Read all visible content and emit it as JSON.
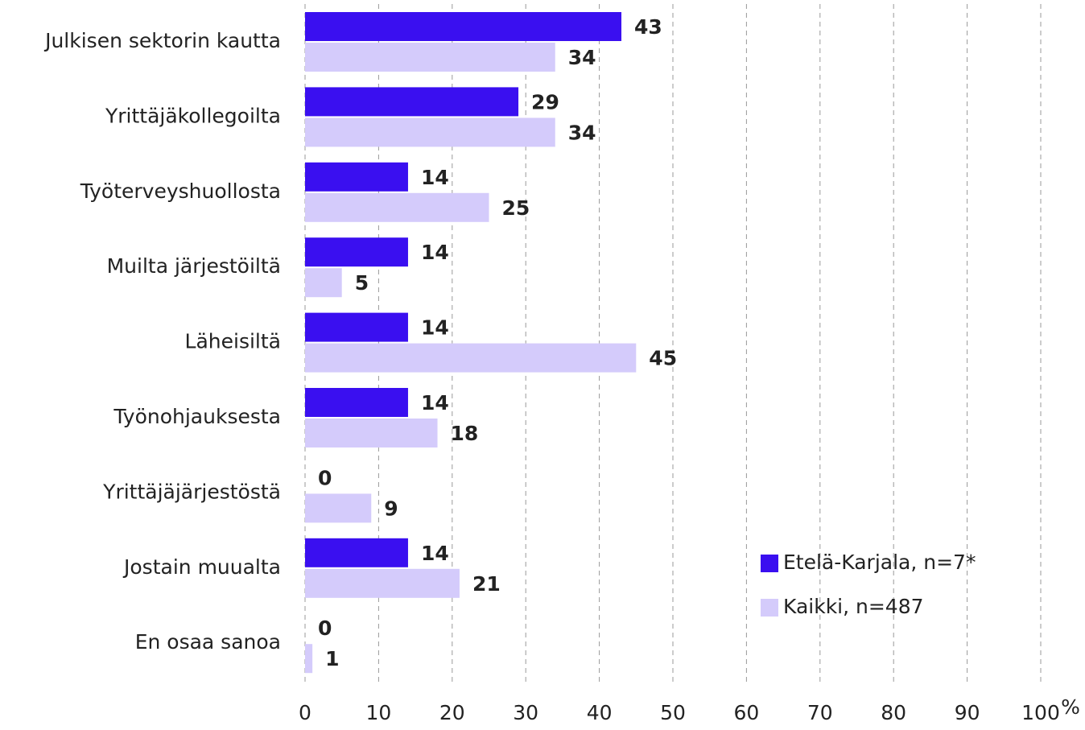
{
  "chart_data": {
    "type": "barh",
    "categories": [
      "Julkisen sektorin kautta",
      "Yrittäjäkollegoilta",
      "Työterveyshuollosta",
      "Muilta järjestöiltä",
      "Läheisiltä",
      "Työnohjauksesta",
      "Yrittäjäjärjestöstä",
      "Jostain muualta",
      "En osaa sanoa"
    ],
    "series": [
      {
        "name": "Etelä-Karjala, n=7*",
        "color": "#3a0ff0",
        "values": [
          43,
          29,
          14,
          14,
          14,
          14,
          0,
          14,
          0
        ]
      },
      {
        "name": "Kaikki, n=487",
        "color": "#d4cbfb",
        "values": [
          34,
          34,
          25,
          5,
          45,
          18,
          9,
          21,
          1
        ]
      }
    ],
    "x_label": "%",
    "xlim": [
      0,
      100
    ],
    "xticks": [
      0,
      10,
      20,
      30,
      40,
      50,
      60,
      70,
      80,
      90,
      100
    ],
    "grid": true,
    "legend": "lower right"
  }
}
